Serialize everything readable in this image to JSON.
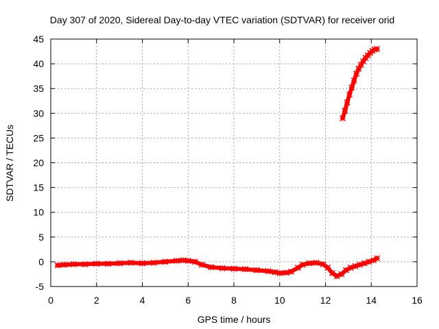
{
  "chart_data": {
    "type": "scatter",
    "title": "Day 307 of 2020, Sidereal Day-to-day VTEC variation (SDTVAR) for receiver orid",
    "xlabel": "GPS time / hours",
    "ylabel": "SDTVAR / TECUs",
    "xlim": [
      0,
      16
    ],
    "ylim": [
      -5,
      45
    ],
    "xticks": [
      0,
      2,
      4,
      6,
      8,
      10,
      12,
      14,
      16
    ],
    "yticks": [
      -5,
      0,
      5,
      10,
      15,
      20,
      25,
      30,
      35,
      40,
      45
    ],
    "grid": true,
    "legend": "none",
    "marker": "cross",
    "series_color": "#ff0000",
    "series": [
      {
        "x": [
          0.3,
          0.6,
          1.0,
          1.5,
          2.0,
          2.5,
          3.0,
          3.5,
          4.0,
          4.5,
          5.0,
          5.5,
          5.8,
          6.0,
          6.3,
          6.6,
          7.0,
          7.5,
          8.0,
          8.5,
          9.0,
          9.5,
          9.8,
          10.0,
          10.3,
          10.5,
          10.8,
          11.0,
          11.3,
          11.6,
          11.9,
          12.1,
          12.3,
          12.5,
          12.7,
          12.9,
          13.1,
          13.3,
          13.5,
          13.7,
          13.9,
          14.1,
          14.25
        ],
        "y": [
          -0.7,
          -0.6,
          -0.5,
          -0.5,
          -0.4,
          -0.4,
          -0.3,
          -0.2,
          -0.3,
          -0.2,
          0.0,
          0.2,
          0.3,
          0.2,
          0.0,
          -0.6,
          -1.1,
          -1.3,
          -1.4,
          -1.5,
          -1.7,
          -1.9,
          -2.1,
          -2.3,
          -2.2,
          -2.0,
          -1.2,
          -0.6,
          -0.3,
          -0.2,
          -0.5,
          -1.2,
          -2.3,
          -2.9,
          -2.5,
          -1.7,
          -1.2,
          -0.9,
          -0.6,
          -0.3,
          0.0,
          0.3,
          0.7
        ]
      },
      {
        "x": [
          12.75,
          12.85,
          12.95,
          13.05,
          13.15,
          13.25,
          13.35,
          13.45,
          13.55,
          13.65,
          13.75,
          13.85,
          13.95,
          14.05,
          14.15,
          14.25
        ],
        "y": [
          29.0,
          30.5,
          32.2,
          33.8,
          35.2,
          36.6,
          38.0,
          39.0,
          39.8,
          40.5,
          41.2,
          41.7,
          42.2,
          42.6,
          42.9,
          43.0
        ]
      }
    ]
  }
}
